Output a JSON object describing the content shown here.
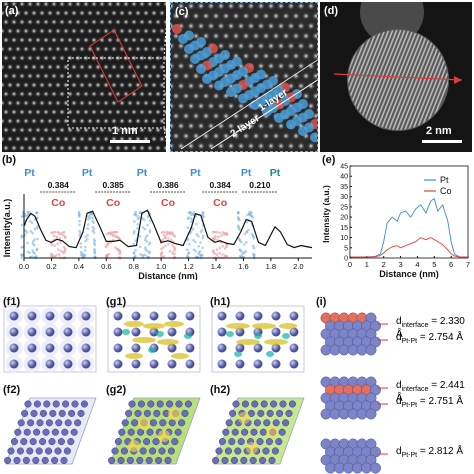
{
  "panel_labels": {
    "a": "(a)",
    "c": "(c)",
    "d": "(d)",
    "b": "(b)",
    "e": "(e)",
    "f1": "(f1)",
    "g1": "(g1)",
    "h1": "(h1)",
    "f2": "(f2)",
    "g2": "(g2)",
    "h2": "(h2)",
    "i": "(i)"
  },
  "scale_a": "1 nm",
  "scale_d": "2 nm",
  "layer_labels": {
    "one": "1-layer",
    "two": "2-layer"
  },
  "colors": {
    "pt": "#3a8ed8",
    "co": "#e0443c",
    "profile_line": "#111111"
  },
  "chart_data": [
    {
      "id": "b",
      "type": "line",
      "xlabel": "Distance (nm)",
      "ylabel": "Intensity(a.u.)",
      "xlim": [
        0,
        2.1
      ],
      "xticks": [
        "0.0",
        "0.2",
        "0.4",
        "0.6",
        "0.8",
        "1.0",
        "1.2",
        "1.4",
        "1.6",
        "1.8",
        "2.0"
      ],
      "top_labels": [
        {
          "text": "Pt",
          "x": 0.04,
          "color": "pt"
        },
        {
          "text": "Pt",
          "x": 0.46,
          "color": "pt"
        },
        {
          "text": "Pt",
          "x": 0.86,
          "color": "pt"
        },
        {
          "text": "Pt",
          "x": 1.25,
          "color": "pt"
        },
        {
          "text": "Pt",
          "x": 1.62,
          "color": "pt"
        },
        {
          "text": "Pt",
          "x": 1.83,
          "color": "teal"
        }
      ],
      "spacings": [
        {
          "text": "0.384",
          "x": 0.25
        },
        {
          "text": "0.385",
          "x": 0.65
        },
        {
          "text": "0.386",
          "x": 1.05
        },
        {
          "text": "0.384",
          "x": 1.43
        },
        {
          "text": "0.210",
          "x": 1.72
        }
      ],
      "co_labels": [
        {
          "text": "Co",
          "x": 0.25
        },
        {
          "text": "Co",
          "x": 0.65
        },
        {
          "text": "Co",
          "x": 1.05
        },
        {
          "text": "Co",
          "x": 1.43
        }
      ],
      "profile": {
        "x": [
          0.0,
          0.02,
          0.05,
          0.08,
          0.12,
          0.16,
          0.2,
          0.24,
          0.28,
          0.33,
          0.38,
          0.43,
          0.46,
          0.5,
          0.55,
          0.6,
          0.65,
          0.7,
          0.76,
          0.82,
          0.86,
          0.9,
          0.95,
          1.0,
          1.05,
          1.1,
          1.16,
          1.22,
          1.25,
          1.29,
          1.34,
          1.39,
          1.43,
          1.48,
          1.53,
          1.58,
          1.62,
          1.66,
          1.71,
          1.76,
          1.8,
          1.83,
          1.87,
          1.92,
          1.97,
          2.02,
          2.06,
          2.1
        ],
        "y": [
          0.62,
          0.74,
          0.86,
          0.8,
          0.55,
          0.34,
          0.3,
          0.36,
          0.33,
          0.22,
          0.2,
          0.5,
          0.86,
          0.9,
          0.62,
          0.32,
          0.32,
          0.34,
          0.22,
          0.24,
          0.86,
          0.92,
          0.62,
          0.3,
          0.33,
          0.28,
          0.24,
          0.58,
          0.85,
          0.82,
          0.4,
          0.3,
          0.33,
          0.28,
          0.26,
          0.5,
          0.74,
          0.7,
          0.3,
          0.24,
          0.45,
          0.6,
          0.5,
          0.26,
          0.2,
          0.24,
          0.22,
          0.2
        ]
      }
    },
    {
      "id": "e",
      "type": "line",
      "xlabel": "Distance (nm)",
      "ylabel": "Intensity (a.u.)",
      "xlim": [
        0,
        7
      ],
      "ylim": [
        0,
        45
      ],
      "xticks": [
        0,
        1,
        2,
        3,
        4,
        5,
        6,
        7
      ],
      "yticks": [
        0,
        5,
        10,
        15,
        20,
        25,
        30,
        35,
        40,
        45
      ],
      "legend": "top-right",
      "series": [
        {
          "name": "Pt",
          "color": "pt",
          "x": [
            0,
            0.5,
            1,
            1.5,
            1.8,
            2,
            2.2,
            2.5,
            2.8,
            3,
            3.3,
            3.6,
            3.9,
            4.2,
            4.5,
            4.8,
            5,
            5.2,
            5.5,
            5.8,
            6,
            6.2,
            6.5,
            7
          ],
          "y": [
            0.5,
            0.5,
            0.5,
            0.8,
            2,
            8,
            17,
            20,
            18,
            22,
            23,
            20,
            24,
            26,
            22,
            28,
            29,
            23,
            26,
            18,
            8,
            2,
            0.5,
            0.5
          ]
        },
        {
          "name": "Co",
          "color": "co",
          "x": [
            0,
            0.5,
            1,
            1.5,
            1.8,
            2,
            2.2,
            2.5,
            2.8,
            3,
            3.3,
            3.6,
            3.9,
            4.2,
            4.5,
            4.8,
            5,
            5.2,
            5.5,
            5.8,
            6,
            6.2,
            6.5,
            7
          ],
          "y": [
            0.5,
            0.5,
            0.5,
            0.6,
            1.2,
            2.5,
            4,
            5.5,
            6,
            5,
            6,
            7,
            8,
            10,
            9,
            10,
            9,
            8,
            6.5,
            4,
            2,
            1,
            0.5,
            0.5
          ]
        }
      ]
    }
  ],
  "panel_i": [
    {
      "d_interface_label": "d",
      "d_interface_sub": "interface",
      "d_interface_val": " = 2.330 Å",
      "d_ptpt_label": "d",
      "d_ptpt_sub": "Pt-Pt",
      "d_ptpt_val": " = 2.754 Å"
    },
    {
      "d_interface_label": "d",
      "d_interface_sub": "interface",
      "d_interface_val": " = 2.441 Å",
      "d_ptpt_label": "d",
      "d_ptpt_sub": "Pt-Pt",
      "d_ptpt_val": " = 2.751 Å"
    },
    {
      "d_ptpt_label": "d",
      "d_ptpt_sub": "Pt-Pt",
      "d_ptpt_val": " = 2.812 Å"
    }
  ]
}
